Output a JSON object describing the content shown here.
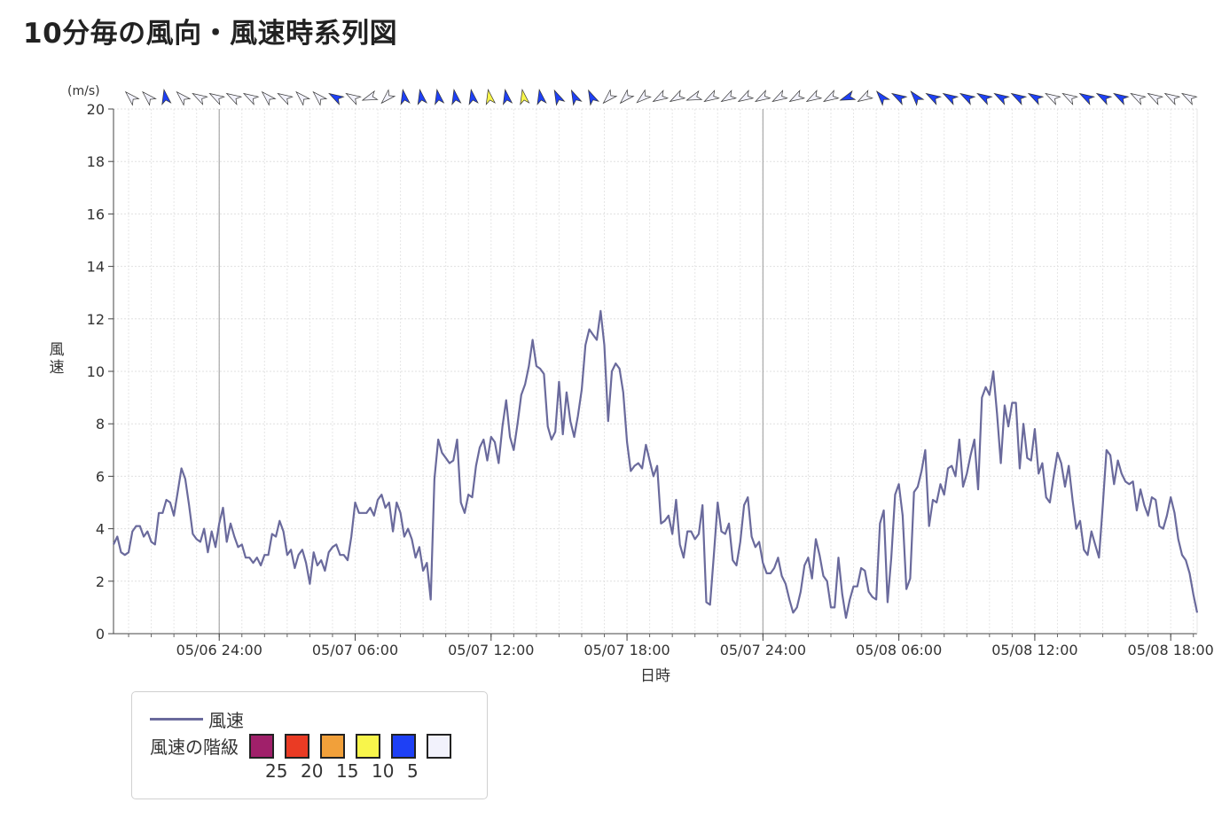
{
  "header": {
    "title": "10分毎の風向・風速時系列図"
  },
  "chart_data": {
    "type": "line",
    "ylabel": "風速",
    "yunit": "(m/s)",
    "xlabel": "日時",
    "ylim": [
      0,
      20
    ],
    "yticks": [
      0,
      2,
      4,
      6,
      8,
      10,
      12,
      14,
      16,
      18,
      20
    ],
    "grid": true,
    "x_start": "05/06 19:20",
    "x_end": "05/08 22:50",
    "interval_minutes": 10,
    "xticks": [
      {
        "label": "05/06 24:00",
        "index": 28
      },
      {
        "label": "05/07 06:00",
        "index": 64
      },
      {
        "label": "05/07 12:00",
        "index": 100
      },
      {
        "label": "05/07 18:00",
        "index": 136
      },
      {
        "label": "05/07 24:00",
        "index": 172
      },
      {
        "label": "05/08 06:00",
        "index": 208
      },
      {
        "label": "05/08 12:00",
        "index": 244
      },
      {
        "label": "05/08 18:00",
        "index": 280
      }
    ],
    "day_boundaries": [
      28,
      172
    ],
    "series": [
      {
        "name": "風速",
        "color": "#6a6a9c",
        "values": [
          3.4,
          3.7,
          3.1,
          3.0,
          3.1,
          3.9,
          4.1,
          4.1,
          3.7,
          3.9,
          3.5,
          3.4,
          4.6,
          4.6,
          5.1,
          5.0,
          4.5,
          5.4,
          6.3,
          5.9,
          4.9,
          3.8,
          3.6,
          3.5,
          4.0,
          3.1,
          3.9,
          3.3,
          4.2,
          4.8,
          3.5,
          4.2,
          3.7,
          3.3,
          3.4,
          2.9,
          2.9,
          2.7,
          2.9,
          2.6,
          3.0,
          3.0,
          3.8,
          3.7,
          4.3,
          3.9,
          3.0,
          3.2,
          2.5,
          3.0,
          3.2,
          2.7,
          1.9,
          3.1,
          2.6,
          2.8,
          2.4,
          3.1,
          3.3,
          3.4,
          3.0,
          3.0,
          2.8,
          3.7,
          5.0,
          4.6,
          4.6,
          4.6,
          4.8,
          4.5,
          5.1,
          5.3,
          4.8,
          5.0,
          3.9,
          5.0,
          4.6,
          3.7,
          4.0,
          3.6,
          2.9,
          3.3,
          2.4,
          2.7,
          1.3,
          5.9,
          7.4,
          6.9,
          6.7,
          6.5,
          6.6,
          7.4,
          5.0,
          4.6,
          5.3,
          5.2,
          6.4,
          7.1,
          7.4,
          6.6,
          7.5,
          7.3,
          6.5,
          7.9,
          8.9,
          7.5,
          7.0,
          8.0,
          9.1,
          9.5,
          10.2,
          11.2,
          10.2,
          10.1,
          9.9,
          7.9,
          7.4,
          7.7,
          9.6,
          7.6,
          9.2,
          8.1,
          7.5,
          8.3,
          9.3,
          11.0,
          11.6,
          11.4,
          11.2,
          12.3,
          11.0,
          8.1,
          10.0,
          10.3,
          10.1,
          9.2,
          7.3,
          6.2,
          6.4,
          6.5,
          6.3,
          7.2,
          6.6,
          6.0,
          6.4,
          4.2,
          4.3,
          4.5,
          3.8,
          5.1,
          3.4,
          2.9,
          3.9,
          3.9,
          3.6,
          3.8,
          4.9,
          1.2,
          1.1,
          3.0,
          5.0,
          3.9,
          3.8,
          4.2,
          2.8,
          2.6,
          3.5,
          4.9,
          5.2,
          3.7,
          3.3,
          3.5,
          2.7,
          2.3,
          2.3,
          2.5,
          2.9,
          2.2,
          1.9,
          1.3,
          0.8,
          1.0,
          1.6,
          2.6,
          2.9,
          2.1,
          3.6,
          3.0,
          2.2,
          2.0,
          1.0,
          1.0,
          2.9,
          1.5,
          0.6,
          1.3,
          1.8,
          1.8,
          2.5,
          2.4,
          1.6,
          1.4,
          1.3,
          4.2,
          4.7,
          1.2,
          2.9,
          5.3,
          5.7,
          4.5,
          1.7,
          2.1,
          5.4,
          5.6,
          6.2,
          7.0,
          4.1,
          5.1,
          5.0,
          5.7,
          5.3,
          6.3,
          6.4,
          6.0,
          7.4,
          5.6,
          6.1,
          6.8,
          7.4,
          5.5,
          9.0,
          9.4,
          9.1,
          10.0,
          8.4,
          6.5,
          8.7,
          7.9,
          8.8,
          8.8,
          6.3,
          8.0,
          6.7,
          6.6,
          7.8,
          6.1,
          6.5,
          5.2,
          5.0,
          6.0,
          6.9,
          6.5,
          5.6,
          6.4,
          5.1,
          4.0,
          4.3,
          3.2,
          3.0,
          3.9,
          3.4,
          2.9,
          4.9,
          7.0,
          6.8,
          5.7,
          6.6,
          6.1,
          5.8,
          5.7,
          5.8,
          4.7,
          5.5,
          4.9,
          4.5,
          5.2,
          5.1,
          4.1,
          4.0,
          4.5,
          5.2,
          4.6,
          3.6,
          3.0,
          2.8,
          2.3,
          1.5,
          0.8
        ]
      }
    ],
    "wind_direction": {
      "direction_interval": "30 minutes",
      "directions_deg": [
        315,
        315,
        350,
        315,
        300,
        300,
        300,
        300,
        315,
        300,
        315,
        315,
        300,
        300,
        250,
        225,
        300,
        225,
        225,
        350,
        350,
        350,
        350,
        350,
        350,
        350,
        350,
        350,
        335,
        335,
        320,
        335,
        320,
        305,
        325,
        230,
        225,
        230,
        230,
        240,
        240,
        240,
        240,
        240,
        240,
        240,
        250,
        240,
        240,
        320,
        320,
        300,
        320,
        300,
        300,
        300,
        300,
        300,
        300,
        300,
        300,
        300,
        300,
        300,
        300,
        300,
        300,
        300,
        300,
        300,
        300,
        300,
        300,
        300,
        300,
        300,
        300,
        300,
        300,
        300,
        300,
        300,
        300,
        300,
        300,
        300,
        300,
        300,
        300,
        300,
        300,
        300,
        300,
        300,
        300,
        300
      ],
      "symbols": [
        {
          "dir": 315,
          "speed": 3.2
        },
        {
          "dir": 315,
          "speed": 3.6
        },
        {
          "dir": 350,
          "speed": 5.5
        },
        {
          "dir": 315,
          "speed": 4.0
        },
        {
          "dir": 300,
          "speed": 3.3
        },
        {
          "dir": 300,
          "speed": 3.0
        },
        {
          "dir": 300,
          "speed": 2.8
        },
        {
          "dir": 300,
          "speed": 3.2
        },
        {
          "dir": 315,
          "speed": 3.0
        },
        {
          "dir": 300,
          "speed": 2.8
        },
        {
          "dir": 315,
          "speed": 3.1
        },
        {
          "dir": 315,
          "speed": 3.0
        },
        {
          "dir": 300,
          "speed": 5.0
        },
        {
          "dir": 300,
          "speed": 4.8
        },
        {
          "dir": 250,
          "speed": 3.5
        },
        {
          "dir": 225,
          "speed": 2.8
        },
        {
          "dir": 350,
          "speed": 6.6
        },
        {
          "dir": 350,
          "speed": 5.5
        },
        {
          "dir": 350,
          "speed": 7.5
        },
        {
          "dir": 350,
          "speed": 7.3
        },
        {
          "dir": 350,
          "speed": 9.5
        },
        {
          "dir": 350,
          "speed": 10.1
        },
        {
          "dir": 350,
          "speed": 7.7
        },
        {
          "dir": 350,
          "speed": 10.0
        },
        {
          "dir": 350,
          "speed": 9.3
        },
        {
          "dir": 335,
          "speed": 6.3
        },
        {
          "dir": 335,
          "speed": 6.5
        },
        {
          "dir": 335,
          "speed": 6.0
        },
        {
          "dir": 225,
          "speed": 4.3
        },
        {
          "dir": 225,
          "speed": 3.4
        },
        {
          "dir": 230,
          "speed": 3.6
        },
        {
          "dir": 240,
          "speed": 1.1
        },
        {
          "dir": 240,
          "speed": 3.9
        },
        {
          "dir": 250,
          "speed": 2.6
        },
        {
          "dir": 240,
          "speed": 2.3
        },
        {
          "dir": 240,
          "speed": 1.3
        },
        {
          "dir": 240,
          "speed": 2.9
        },
        {
          "dir": 240,
          "speed": 1.2
        },
        {
          "dir": 240,
          "speed": 1.8
        },
        {
          "dir": 240,
          "speed": 1.4
        },
        {
          "dir": 240,
          "speed": 4.5
        },
        {
          "dir": 240,
          "speed": 1.7
        },
        {
          "dir": 250,
          "speed": 5.6
        },
        {
          "dir": 240,
          "speed": 4.1
        },
        {
          "dir": 320,
          "speed": 6.0
        },
        {
          "dir": 300,
          "speed": 6.1
        },
        {
          "dir": 320,
          "speed": 5.5
        },
        {
          "dir": 300,
          "speed": 9.4
        },
        {
          "dir": 300,
          "speed": 8.4
        },
        {
          "dir": 300,
          "speed": 7.9
        },
        {
          "dir": 300,
          "speed": 8.0
        },
        {
          "dir": 300,
          "speed": 6.6
        },
        {
          "dir": 300,
          "speed": 5.5
        },
        {
          "dir": 300,
          "speed": 6.5
        },
        {
          "dir": 300,
          "speed": 4.0
        },
        {
          "dir": 300,
          "speed": 3.4
        },
        {
          "dir": 300,
          "speed": 5.8
        },
        {
          "dir": 300,
          "speed": 6.1
        },
        {
          "dir": 300,
          "speed": 5.5
        },
        {
          "dir": 300,
          "speed": 4.5
        },
        {
          "dir": 300,
          "speed": 4.5
        },
        {
          "dir": 300,
          "speed": 3.0
        },
        {
          "dir": 300,
          "speed": 2.0
        }
      ]
    }
  },
  "legend": {
    "series_label": "風速",
    "scale_label": "風速の階級",
    "scale": [
      {
        "color": "#a0206a",
        "value": "25"
      },
      {
        "color": "#ea3b24",
        "value": "20"
      },
      {
        "color": "#f1a03a",
        "value": "15"
      },
      {
        "color": "#f8f54b",
        "value": "10"
      },
      {
        "color": "#1e40f5",
        "value": "5"
      },
      {
        "color": "#f2f2fc",
        "value": ""
      }
    ]
  }
}
